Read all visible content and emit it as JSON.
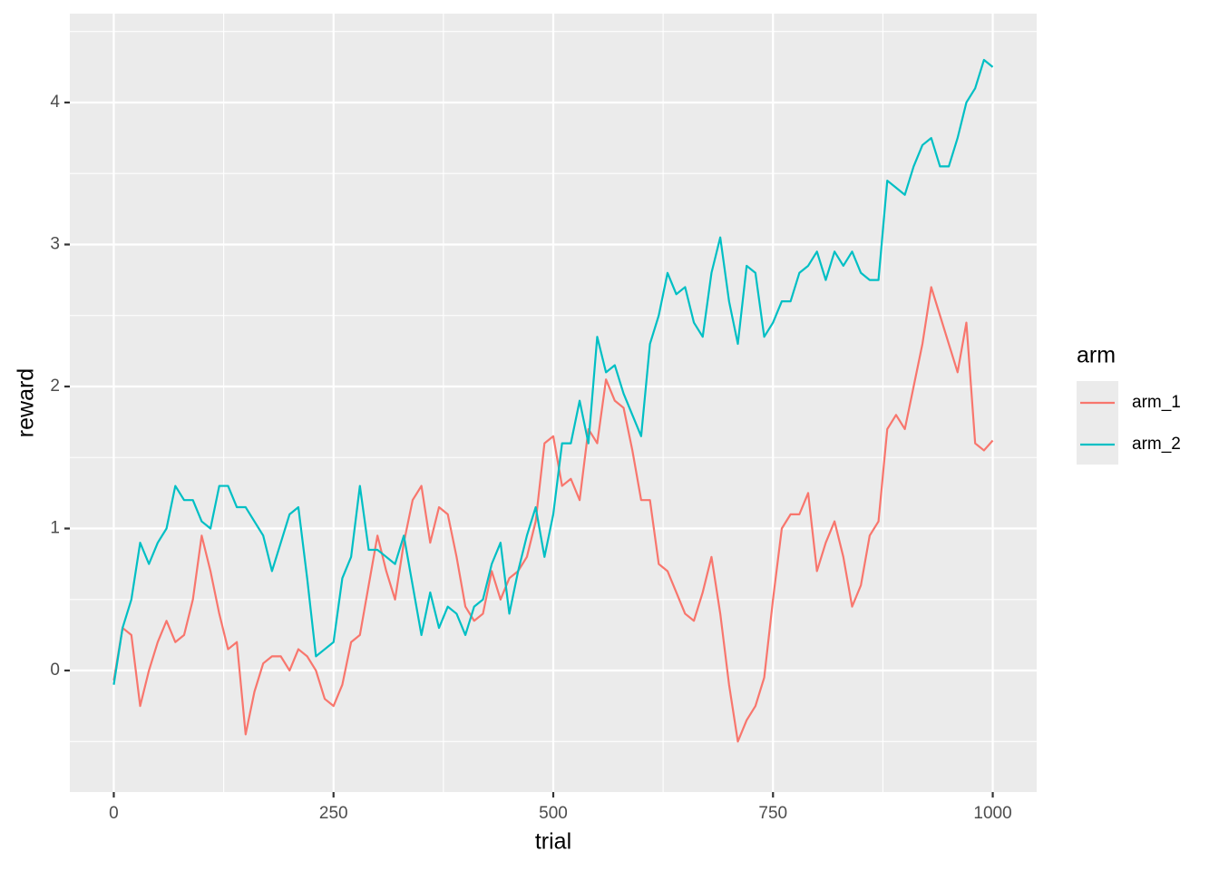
{
  "chart_data": {
    "type": "line",
    "xlabel": "trial",
    "ylabel": "reward",
    "legend_title": "arm",
    "legend_position": "right",
    "xlim": [
      -50,
      1050
    ],
    "ylim": [
      -0.856,
      4.626
    ],
    "xticks": [
      0,
      250,
      500,
      750,
      1000
    ],
    "yticks": [
      0,
      1,
      2,
      3,
      4
    ],
    "x_minor_breaks": [
      125,
      375,
      625,
      875
    ],
    "y_minor_breaks": [
      -0.5,
      0.5,
      1.5,
      2.5,
      3.5,
      4.5
    ],
    "grid": true,
    "x": [
      0,
      10,
      20,
      30,
      40,
      50,
      60,
      70,
      80,
      90,
      100,
      110,
      120,
      130,
      140,
      150,
      160,
      170,
      180,
      190,
      200,
      210,
      220,
      230,
      240,
      250,
      260,
      270,
      280,
      290,
      300,
      310,
      320,
      330,
      340,
      350,
      360,
      370,
      380,
      390,
      400,
      410,
      420,
      430,
      440,
      450,
      460,
      470,
      480,
      490,
      500,
      510,
      520,
      530,
      540,
      550,
      560,
      570,
      580,
      590,
      600,
      610,
      620,
      630,
      640,
      650,
      660,
      670,
      680,
      690,
      700,
      710,
      720,
      730,
      740,
      750,
      760,
      770,
      780,
      790,
      800,
      810,
      820,
      830,
      840,
      850,
      860,
      870,
      880,
      890,
      900,
      910,
      920,
      930,
      940,
      950,
      960,
      970,
      980,
      990,
      1000
    ],
    "series": [
      {
        "name": "arm_1",
        "color": "#F8766D",
        "values": [
          -0.07,
          0.3,
          0.25,
          -0.25,
          0,
          0.2,
          0.35,
          0.2,
          0.25,
          0.5,
          0.95,
          0.7,
          0.4,
          0.15,
          0.2,
          -0.45,
          -0.15,
          0.05,
          0.1,
          0.1,
          0,
          0.15,
          0.1,
          0,
          -0.2,
          -0.25,
          -0.1,
          0.2,
          0.25,
          0.6,
          0.95,
          0.7,
          0.5,
          0.9,
          1.2,
          1.3,
          0.9,
          1.15,
          1.1,
          0.8,
          0.45,
          0.35,
          0.4,
          0.7,
          0.5,
          0.65,
          0.7,
          0.8,
          1.05,
          1.6,
          1.65,
          1.3,
          1.35,
          1.2,
          1.7,
          1.6,
          2.05,
          1.9,
          1.85,
          1.55,
          1.2,
          1.2,
          0.75,
          0.7,
          0.55,
          0.4,
          0.35,
          0.55,
          0.8,
          0.4,
          -0.1,
          -0.5,
          -0.35,
          -0.25,
          -0.05,
          0.5,
          1.0,
          1.1,
          1.1,
          1.25,
          0.7,
          0.9,
          1.05,
          0.8,
          0.45,
          0.6,
          0.95,
          1.05,
          1.7,
          1.8,
          1.7,
          2.0,
          2.3,
          2.7,
          2.5,
          2.3,
          2.1,
          2.45,
          1.6,
          1.55,
          1.62
        ]
      },
      {
        "name": "arm_2",
        "color": "#00BFC4",
        "values": [
          -0.1,
          0.3,
          0.5,
          0.9,
          0.75,
          0.9,
          1.0,
          1.3,
          1.2,
          1.2,
          1.05,
          1.0,
          1.3,
          1.3,
          1.15,
          1.15,
          1.05,
          0.95,
          0.7,
          0.9,
          1.1,
          1.15,
          0.65,
          0.1,
          0.15,
          0.2,
          0.65,
          0.8,
          1.3,
          0.85,
          0.85,
          0.8,
          0.75,
          0.95,
          0.6,
          0.25,
          0.55,
          0.3,
          0.45,
          0.4,
          0.25,
          0.45,
          0.5,
          0.75,
          0.9,
          0.4,
          0.7,
          0.95,
          1.15,
          0.8,
          1.1,
          1.6,
          1.6,
          1.9,
          1.6,
          2.35,
          2.1,
          2.15,
          1.95,
          1.8,
          1.65,
          2.3,
          2.5,
          2.8,
          2.65,
          2.7,
          2.45,
          2.35,
          2.8,
          3.05,
          2.6,
          2.3,
          2.85,
          2.8,
          2.35,
          2.45,
          2.6,
          2.6,
          2.8,
          2.85,
          2.95,
          2.75,
          2.95,
          2.85,
          2.95,
          2.8,
          2.75,
          2.75,
          3.45,
          3.4,
          3.35,
          3.55,
          3.7,
          3.75,
          3.55,
          3.55,
          3.75,
          4.0,
          4.1,
          4.3,
          4.25
        ]
      }
    ]
  }
}
